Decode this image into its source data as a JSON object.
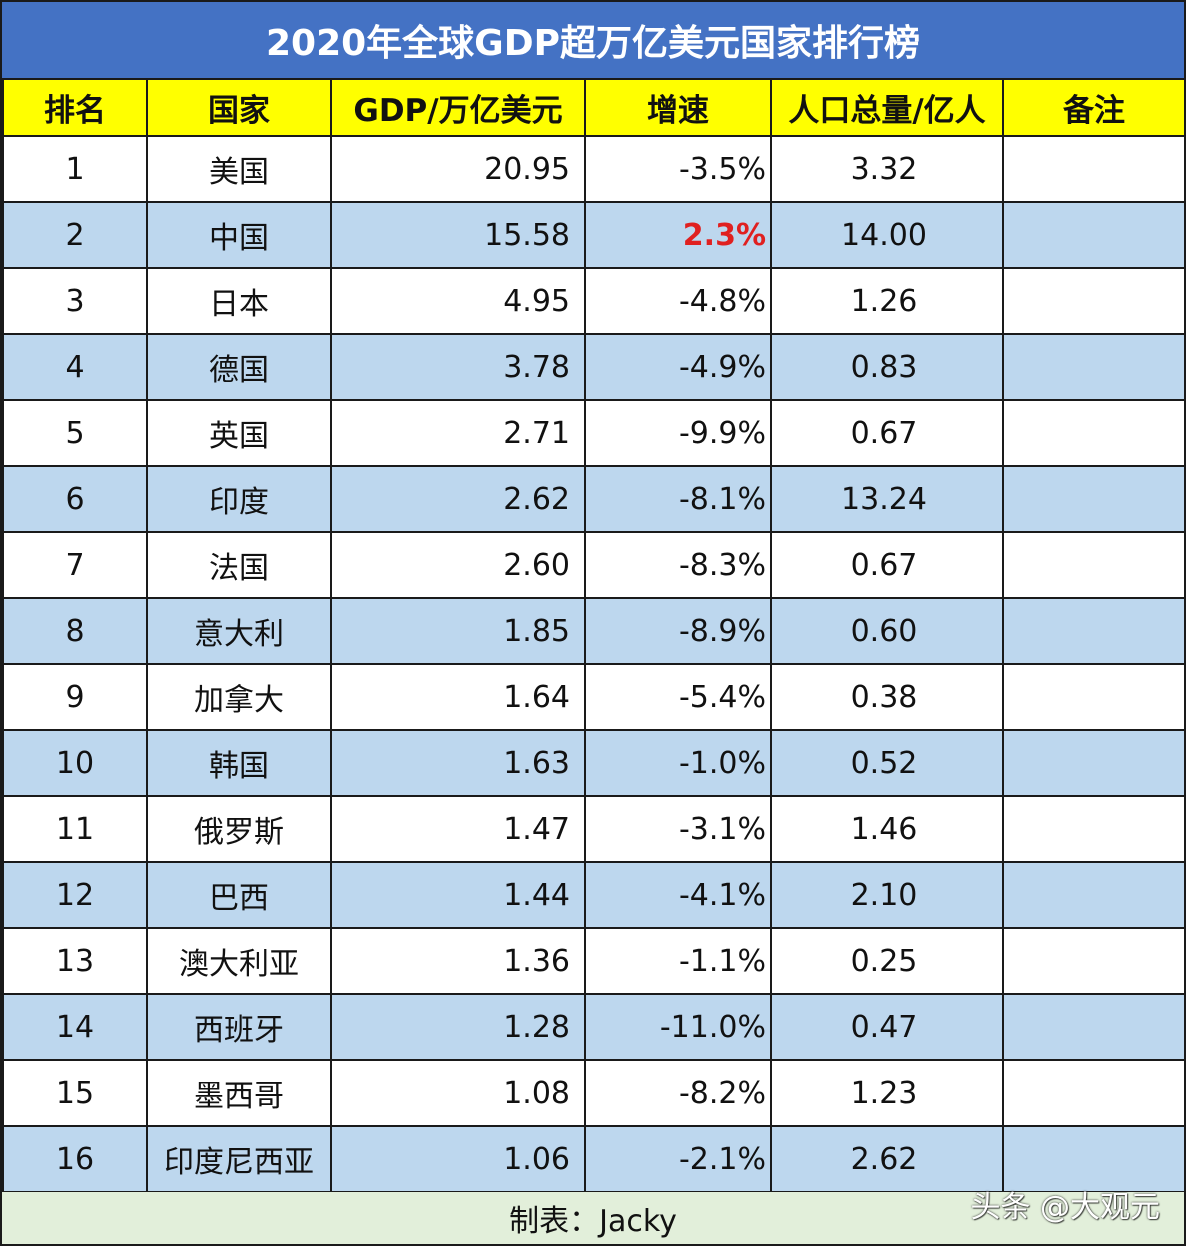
{
  "title": "2020年全球GDP超万亿美元国家排行榜",
  "colors": {
    "title_bg": "#4472C4",
    "header_bg": "#FFFF00",
    "row_alt_bg": "#BDD7EE",
    "footer_bg": "#E2EFDA",
    "positive_growth": "#E02020"
  },
  "columns": [
    "排名",
    "国家",
    "GDP/万亿美元",
    "增速",
    "人口总量/亿人",
    "备注"
  ],
  "rows": [
    {
      "rank": "1",
      "country": "美国",
      "gdp": "20.95",
      "growth": "-3.5%",
      "population": "3.32",
      "note": ""
    },
    {
      "rank": "2",
      "country": "中国",
      "gdp": "15.58",
      "growth": "2.3%",
      "population": "14.00",
      "note": ""
    },
    {
      "rank": "3",
      "country": "日本",
      "gdp": "4.95",
      "growth": "-4.8%",
      "population": "1.26",
      "note": ""
    },
    {
      "rank": "4",
      "country": "德国",
      "gdp": "3.78",
      "growth": "-4.9%",
      "population": "0.83",
      "note": ""
    },
    {
      "rank": "5",
      "country": "英国",
      "gdp": "2.71",
      "growth": "-9.9%",
      "population": "0.67",
      "note": ""
    },
    {
      "rank": "6",
      "country": "印度",
      "gdp": "2.62",
      "growth": "-8.1%",
      "population": "13.24",
      "note": ""
    },
    {
      "rank": "7",
      "country": "法国",
      "gdp": "2.60",
      "growth": "-8.3%",
      "population": "0.67",
      "note": ""
    },
    {
      "rank": "8",
      "country": "意大利",
      "gdp": "1.85",
      "growth": "-8.9%",
      "population": "0.60",
      "note": ""
    },
    {
      "rank": "9",
      "country": "加拿大",
      "gdp": "1.64",
      "growth": "-5.4%",
      "population": "0.38",
      "note": ""
    },
    {
      "rank": "10",
      "country": "韩国",
      "gdp": "1.63",
      "growth": "-1.0%",
      "population": "0.52",
      "note": ""
    },
    {
      "rank": "11",
      "country": "俄罗斯",
      "gdp": "1.47",
      "growth": "-3.1%",
      "population": "1.46",
      "note": ""
    },
    {
      "rank": "12",
      "country": "巴西",
      "gdp": "1.44",
      "growth": "-4.1%",
      "population": "2.10",
      "note": ""
    },
    {
      "rank": "13",
      "country": "澳大利亚",
      "gdp": "1.36",
      "growth": "-1.1%",
      "population": "0.25",
      "note": ""
    },
    {
      "rank": "14",
      "country": "西班牙",
      "gdp": "1.28",
      "growth": "-11.0%",
      "population": "0.47",
      "note": ""
    },
    {
      "rank": "15",
      "country": "墨西哥",
      "gdp": "1.08",
      "growth": "-8.2%",
      "population": "1.23",
      "note": ""
    },
    {
      "rank": "16",
      "country": "印度尼西亚",
      "gdp": "1.06",
      "growth": "-2.1%",
      "population": "2.62",
      "note": ""
    }
  ],
  "footer": {
    "credit": "制表：Jacky",
    "watermark": "头条 @大观元"
  }
}
